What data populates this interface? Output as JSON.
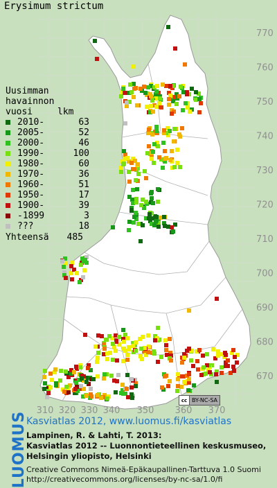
{
  "title": "Erysimum strictum",
  "legend": {
    "heading": [
      "Uusimman",
      "havainnon",
      "vuosi"
    ],
    "count_heading": "lkm",
    "rows": [
      {
        "label": "2010-",
        "count": "63",
        "color": "#106810"
      },
      {
        "label": "2005-",
        "count": "52",
        "color": "#189818"
      },
      {
        "label": "2000-",
        "count": "46",
        "color": "#30c020"
      },
      {
        "label": "1990-",
        "count": "100",
        "color": "#78e010"
      },
      {
        "label": "1980-",
        "count": "60",
        "color": "#f0f000"
      },
      {
        "label": "1970-",
        "count": "36",
        "color": "#f0b800"
      },
      {
        "label": "1960-",
        "count": "51",
        "color": "#f07800"
      },
      {
        "label": "1950-",
        "count": "17",
        "color": "#e03800"
      },
      {
        "label": "1900-",
        "count": "39",
        "color": "#c01010"
      },
      {
        "label": "-1899",
        "count": "3",
        "color": "#880808"
      },
      {
        "label": "???",
        "count": "18",
        "color": "#c0c0c0"
      }
    ],
    "total_label": "Yhteensä",
    "total_count": "485"
  },
  "grid": {
    "x_labels": [
      "310",
      "320",
      "330",
      "340",
      "350",
      "360",
      "370"
    ],
    "y_labels": [
      "770",
      "760",
      "750",
      "740",
      "730",
      "720",
      "710",
      "700",
      "690",
      "680",
      "670"
    ]
  },
  "license_badge": {
    "logo": "cc",
    "text": "BY-NC-SA"
  },
  "footer": {
    "logo_text": "LUOMUS",
    "link": "Kasviatlas 2012, www.luomus.fi/kasviatlas",
    "citation1": "Lampinen, R. & Lahti, T. 2013:",
    "citation2": "Kasviatlas 2012 -- Luonnontieteellinen keskusmuseo,",
    "citation3": "Helsingin yliopisto, Helsinki",
    "license1": "Creative Commons Nimeä-Epäkaupallinen-Tarttuva 1.0 Suomi",
    "license2": "http://creativecommons.org/licenses/by-nc-sa/1.0/fi"
  }
}
